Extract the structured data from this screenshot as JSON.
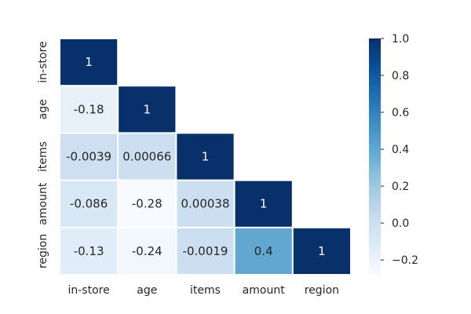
{
  "chart_data": {
    "type": "heatmap",
    "title": "",
    "xlabel": "",
    "ylabel": "",
    "variables": [
      "in-store",
      "age",
      "items",
      "amount",
      "region"
    ],
    "mask": "upper-triangle-excluding-diagonal",
    "matrix": [
      [
        1,
        null,
        null,
        null,
        null
      ],
      [
        -0.18,
        1,
        null,
        null,
        null
      ],
      [
        -0.0039,
        0.00066,
        1,
        null,
        null
      ],
      [
        -0.086,
        -0.28,
        0.00038,
        1,
        null
      ],
      [
        -0.13,
        -0.24,
        -0.0019,
        0.4,
        1
      ]
    ],
    "annotations": [
      [
        "1",
        "",
        "",
        "",
        ""
      ],
      [
        "-0.18",
        "1",
        "",
        "",
        ""
      ],
      [
        "-0.0039",
        "0.00066",
        "1",
        "",
        ""
      ],
      [
        "-0.086",
        "-0.28",
        "0.00038",
        "1",
        ""
      ],
      [
        "-0.13",
        "-0.24",
        "-0.0019",
        "0.4",
        "1"
      ]
    ],
    "colormap": "Blues",
    "colormap_stops": [
      "#f7fbff",
      "#deebf7",
      "#c6dbef",
      "#9ecae1",
      "#6baed6",
      "#4292c6",
      "#2171b5",
      "#08519c",
      "#08306b"
    ],
    "vmin": -0.28,
    "vmax": 1.0,
    "colorbar": {
      "ticks": [
        1.0,
        0.8,
        0.6,
        0.4,
        0.2,
        0.0,
        -0.2
      ],
      "tick_labels": [
        "1.0",
        "0.8",
        "0.6",
        "0.4",
        "0.2",
        "0.0",
        "−0.2"
      ]
    },
    "grid": false,
    "cell_border_color": "#ffffff",
    "text_colors": {
      "dark_bg": "#ffffff",
      "light_bg": "#262626"
    }
  }
}
